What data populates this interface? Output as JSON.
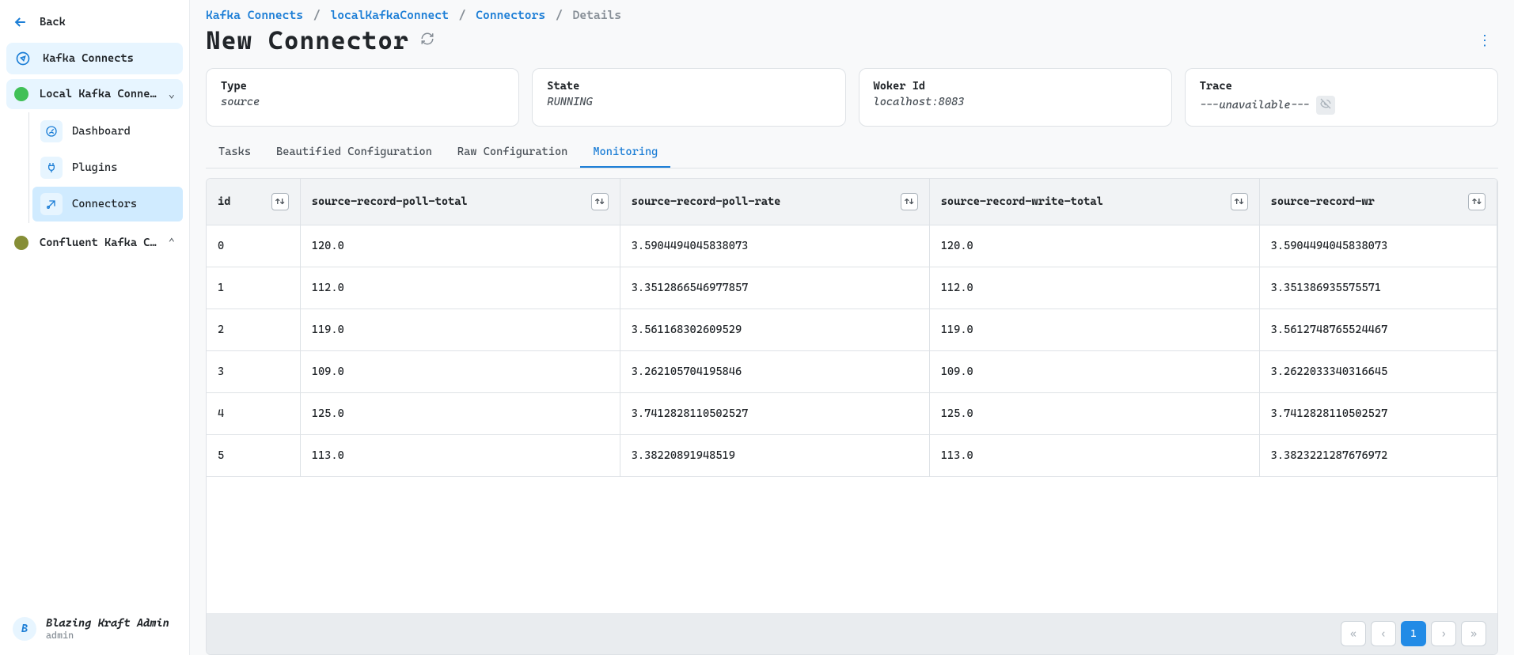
{
  "sidebar": {
    "back_label": "Back",
    "top_nav": {
      "label": "Kafka Connects"
    },
    "cluster_active": {
      "label": "Local Kafka Conne…",
      "status_color": "#40c057"
    },
    "sub_items": [
      {
        "label": "Dashboard",
        "icon": "dashboard"
      },
      {
        "label": "Plugins",
        "icon": "plug"
      },
      {
        "label": "Connectors",
        "icon": "connector",
        "active": true
      }
    ],
    "cluster_other": {
      "label": "Confluent Kafka C…",
      "status_color": "#868e36"
    }
  },
  "user": {
    "name": "Blazing Kraft Admin",
    "sub": "admin",
    "initial": "B"
  },
  "breadcrumb": [
    {
      "label": "Kafka Connects",
      "link": true
    },
    {
      "label": "localKafkaConnect",
      "link": true
    },
    {
      "label": "Connectors",
      "link": true
    },
    {
      "label": "Details",
      "link": false
    }
  ],
  "page_title": "New Connector",
  "cards": [
    {
      "label": "Type",
      "value": "source"
    },
    {
      "label": "State",
      "value": "RUNNING"
    },
    {
      "label": "Woker Id",
      "value": "localhost:8083"
    },
    {
      "label": "Trace",
      "value": "---unavailable---",
      "trace": true
    }
  ],
  "tabs": [
    {
      "label": "Tasks"
    },
    {
      "label": "Beautified Configuration"
    },
    {
      "label": "Raw Configuration"
    },
    {
      "label": "Monitoring",
      "active": true
    }
  ],
  "table": {
    "columns": [
      "id",
      "source-record-poll-total",
      "source-record-poll-rate",
      "source-record-write-total",
      "source-record-write-rate"
    ],
    "column_display": [
      "id",
      "source-record-poll-total",
      "source-record-poll-rate",
      "source-record-write-total",
      "source-record-wr"
    ],
    "rows": [
      [
        "0",
        "120.0",
        "3.5904494045838073",
        "120.0",
        "3.5904494045838073"
      ],
      [
        "1",
        "112.0",
        "3.3512866546977857",
        "112.0",
        "3.351386935575571"
      ],
      [
        "2",
        "119.0",
        "3.561168302609529",
        "119.0",
        "3.5612748765524467"
      ],
      [
        "3",
        "109.0",
        "3.262105704195846",
        "109.0",
        "3.2622033340316645"
      ],
      [
        "4",
        "125.0",
        "3.7412828110502527",
        "125.0",
        "3.7412828110502527"
      ],
      [
        "5",
        "113.0",
        "3.38220891948519",
        "113.0",
        "3.3823221287676972"
      ]
    ]
  },
  "pagination": {
    "current": "1"
  },
  "colors": {
    "primary": "#1c7ed6",
    "bg": "#f8f9fa",
    "border": "#dee2e6",
    "header_bg": "#f1f3f5",
    "active_bg": "#d0ebff",
    "light_bg": "#e7f5ff"
  }
}
